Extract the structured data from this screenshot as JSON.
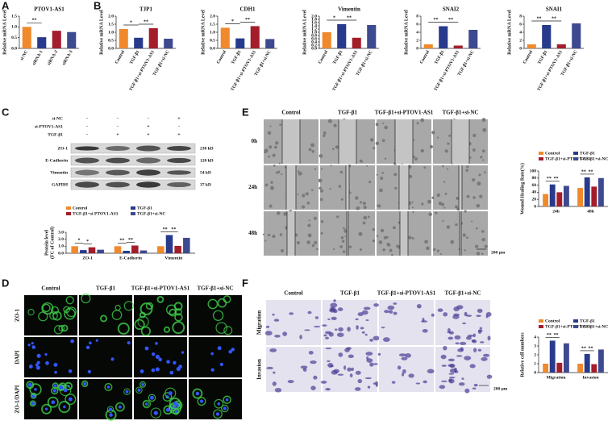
{
  "panel_labels": [
    "A",
    "B",
    "C",
    "D",
    "E",
    "F"
  ],
  "chart_data": [
    {
      "type": "bar",
      "title": "PTOV1-AS1",
      "y_label": [
        "Relative mRNA Level"
      ],
      "categories": [
        "si-NC",
        "siRNA-1",
        "siRNA-2",
        "siRNA-3"
      ],
      "values": [
        1.0,
        0.52,
        0.82,
        0.76
      ],
      "colors": [
        "#f0892b",
        "#283a8c",
        "#a31d2b",
        "#3d4a8f"
      ],
      "ylim": [
        0,
        1.5
      ],
      "yticks": [
        {
          "value": 0,
          "label": "0.0"
        },
        {
          "value": 0.5,
          "label": "0.5"
        },
        {
          "value": 1,
          "label": "1.0"
        },
        {
          "value": 1.5,
          "label": "1.5"
        }
      ],
      "annotations": [
        "**"
      ]
    },
    {
      "type": "bar",
      "title": "TJP1",
      "y_label": [
        "Relative mRNA Level"
      ],
      "categories": [
        "Control",
        "TGF-β1",
        "TGF-β1+si-PTOV1-AS1",
        "TGF-β1+si-NC"
      ],
      "values": [
        1.2,
        0.66,
        1.25,
        0.6
      ],
      "colors": [
        "#f0892b",
        "#283a8c",
        "#a31d2b",
        "#3d4a8f"
      ],
      "ylim": [
        0,
        2
      ],
      "yticks": [
        {
          "value": 0,
          "label": "0.0"
        },
        {
          "value": 0.5,
          "label": "0.5"
        },
        {
          "value": 1,
          "label": "1.0"
        },
        {
          "value": 1.5,
          "label": "1.5"
        },
        {
          "value": 2,
          "label": "2.0"
        }
      ],
      "annotations": [
        "*",
        "**"
      ]
    },
    {
      "type": "bar",
      "title": "CDH1",
      "y_label": [
        "Relative mRNA Level"
      ],
      "categories": [
        "Control",
        "TGF-β1",
        "TGF-β1+si-PTOV1-AS1",
        "TGF-β1+si-NC"
      ],
      "values": [
        1.28,
        0.62,
        1.38,
        0.58
      ],
      "colors": [
        "#f0892b",
        "#283a8c",
        "#a31d2b",
        "#3d4a8f"
      ],
      "ylim": [
        0,
        2
      ],
      "yticks": [
        {
          "value": 0,
          "label": "0.0"
        },
        {
          "value": 0.5,
          "label": "0.5"
        },
        {
          "value": 1,
          "label": "1.0"
        },
        {
          "value": 1.5,
          "label": "1.5"
        },
        {
          "value": 2,
          "label": "2.0"
        }
      ],
      "annotations": [
        "*",
        "**"
      ]
    },
    {
      "type": "bar",
      "title": "Vimentin",
      "y_label": [
        "Relative mRNA Level"
      ],
      "categories": [
        "Control",
        "TGF-β1",
        "TGF-β1+si-PTOV1-AS1",
        "TGF-β1+si-NC"
      ],
      "values": [
        1.0,
        1.5,
        0.66,
        1.45
      ],
      "colors": [
        "#f0892b",
        "#283a8c",
        "#a31d2b",
        "#3d4a8f"
      ],
      "ylim": [
        0,
        2
      ],
      "yticks": [
        {
          "value": 0,
          "label": "0.0"
        },
        {
          "value": 0.2,
          "label": "0.2"
        },
        {
          "value": 0.4,
          "label": "0.4"
        },
        {
          "value": 0.6,
          "label": "0.6"
        },
        {
          "value": 0.8,
          "label": "0.8"
        },
        {
          "value": 1,
          "label": "1.0"
        },
        {
          "value": 1.2,
          "label": "1.2"
        },
        {
          "value": 1.4,
          "label": "1.4"
        },
        {
          "value": 1.6,
          "label": "1.6"
        },
        {
          "value": 1.8,
          "label": "1.8"
        },
        {
          "value": 2,
          "label": "2.0"
        }
      ],
      "annotations": [
        "*",
        "**"
      ]
    },
    {
      "type": "bar",
      "title": "SNAI2",
      "y_label": [
        "Relative mRNA Level"
      ],
      "categories": [
        "Control",
        "TGF-β1",
        "TGF-β1+si-PTOV1-AS1",
        "TGF-β1+si-NC"
      ],
      "values": [
        1.0,
        5.5,
        0.7,
        4.6
      ],
      "colors": [
        "#f0892b",
        "#283a8c",
        "#a31d2b",
        "#3d4a8f"
      ],
      "ylim": [
        0,
        8
      ],
      "yticks": [
        0,
        2,
        4,
        6,
        8
      ],
      "annotations": [
        "**",
        "**"
      ]
    },
    {
      "type": "bar",
      "title": "SNAI1",
      "y_label": [
        "Relative mRNA Level"
      ],
      "categories": [
        "Control",
        "TGF-β1",
        "TGF-β1+si-PTOV1-AS1",
        "TGF-β1+si-NC"
      ],
      "values": [
        1.0,
        5.8,
        1.0,
        6.2
      ],
      "colors": [
        "#f0892b",
        "#283a8c",
        "#a31d2b",
        "#3d4a8f"
      ],
      "ylim": [
        0,
        8
      ],
      "yticks": [
        0,
        2,
        4,
        6,
        8
      ],
      "annotations": [
        "**",
        "**"
      ]
    },
    {
      "type": "grouped_bar",
      "y_label": [
        "Protein level",
        "(FC of Control)"
      ],
      "categories": [
        "ZO-1",
        "E-Cadherin",
        "Vimentin"
      ],
      "series": [
        {
          "name": "Control",
          "color": "#f0892b",
          "values": [
            1.0,
            1.0,
            1.0
          ]
        },
        {
          "name": "TGF-β1",
          "color": "#283a8c",
          "values": [
            0.45,
            0.35,
            2.6
          ]
        },
        {
          "name": "TGF-β1+si PTOV1-AS1",
          "color": "#a31d2b",
          "values": [
            0.85,
            1.1,
            1.05
          ]
        },
        {
          "name": "TGF-β1+si-NC",
          "color": "#3d4a8f",
          "values": [
            0.5,
            0.4,
            2.2
          ]
        }
      ],
      "ylim": [
        0,
        3
      ],
      "yticks": [
        {
          "value": 0,
          "label": "0.0"
        },
        {
          "value": 1,
          "label": "1.0"
        },
        {
          "value": 2,
          "label": "2.0"
        },
        {
          "value": 3,
          "label": "3.0"
        }
      ],
      "annotations": [
        [
          "*",
          "*"
        ],
        [
          "**",
          "**"
        ],
        [
          "**",
          "**"
        ]
      ]
    },
    {
      "type": "grouped_bar",
      "y_label": [
        "Wound Healing Rate(%)"
      ],
      "categories": [
        "24h",
        "48h"
      ],
      "series": [
        {
          "name": "Control",
          "color": "#f0892b",
          "values": [
            35,
            52
          ]
        },
        {
          "name": "TGF-β1",
          "color": "#283a8c",
          "values": [
            62,
            82
          ]
        },
        {
          "name": "TGF-β1+si-PTOV1-AS1",
          "color": "#a31d2b",
          "values": [
            40,
            56
          ]
        },
        {
          "name": "TGF-β1+si-NC",
          "color": "#3d4a8f",
          "values": [
            58,
            80
          ]
        }
      ],
      "ylim": [
        0,
        100
      ],
      "yticks": [
        0,
        20,
        40,
        60,
        80,
        100
      ],
      "annotations": [
        [
          "**",
          "**"
        ],
        [
          "**",
          "**"
        ]
      ]
    },
    {
      "type": "grouped_bar",
      "y_label": [
        "Relative cell numbers"
      ],
      "categories": [
        "Migration",
        "Invasion"
      ],
      "series": [
        {
          "name": "Control",
          "color": "#f0892b",
          "values": [
            1.0,
            1.0
          ]
        },
        {
          "name": "TGF-β1",
          "color": "#283a8c",
          "values": [
            3.6,
            2.1
          ]
        },
        {
          "name": "TGF-β1+si-PTOV1-AS1",
          "color": "#a31d2b",
          "values": [
            1.1,
            0.95
          ]
        },
        {
          "name": "TGF-β1+si-NC",
          "color": "#3d4a8f",
          "values": [
            3.3,
            2.6
          ]
        }
      ],
      "ylim": [
        0,
        4
      ],
      "yticks": [
        0,
        1,
        2,
        3,
        4
      ],
      "annotations": [
        [
          "**",
          "**"
        ],
        [
          "**",
          "**"
        ]
      ]
    }
  ],
  "blot": {
    "treatments": [
      {
        "label": "si-NC",
        "signs": [
          "-",
          "-",
          "-",
          "+"
        ]
      },
      {
        "label": "si-PTOV1-AS1",
        "signs": [
          "-",
          "-",
          "+",
          "-"
        ]
      },
      {
        "label": "TGF-β1",
        "signs": [
          "-",
          "+",
          "+",
          "+"
        ]
      }
    ],
    "proteins": [
      {
        "name": "ZO-1",
        "size": "230 kD"
      },
      {
        "name": "E-Cadherin",
        "size": "120 kD"
      },
      {
        "name": "Vimentin",
        "size": "54 kD"
      },
      {
        "name": "GAPDH",
        "size": "37 kD"
      }
    ]
  },
  "immunofluorescence": {
    "columns": [
      "Control",
      "TGF-β1",
      "TGF-β1+si-PTOV1-AS1",
      "TGF-β1+si-NC"
    ],
    "rows": [
      "ZO-1",
      "DAPI",
      "ZO-1/DAPI"
    ]
  },
  "wound_healing": {
    "columns": [
      "Control",
      "TGF-β1",
      "TGF-β1+si-PTOV1-AS1",
      "TGF-β1+si-NC"
    ],
    "rows": [
      "0h",
      "24h",
      "48h"
    ],
    "scale_bar": "200 μm"
  },
  "transwell": {
    "columns": [
      "Control",
      "TGF-β1",
      "TGF-β1+si-PTOV1-AS1",
      "TGF-β1+si-NC"
    ],
    "rows": [
      "Migration",
      "Invasion"
    ],
    "scale_bar": "200 μm"
  }
}
